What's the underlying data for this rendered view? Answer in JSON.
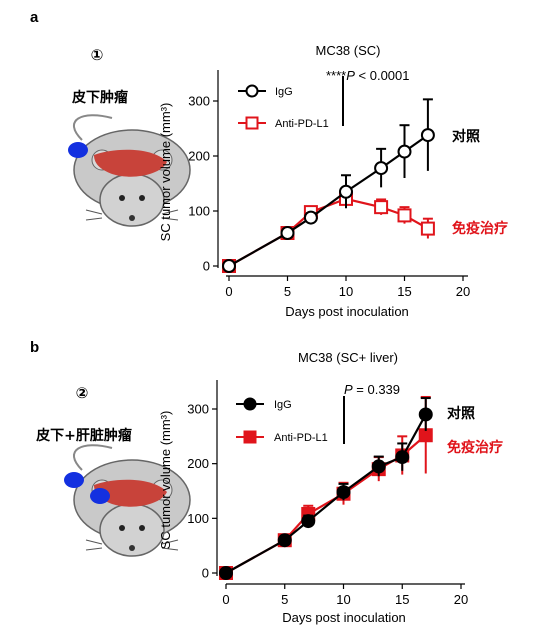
{
  "panels": [
    {
      "panel_label": "a",
      "circle_number": "①",
      "model_label": "皮下肿瘤",
      "show_liver_tumor": false,
      "chart_title": "MC38 (SC)",
      "stat_label": "****P < 0.0001",
      "stat_prefix": "****",
      "stat_p": "P",
      "stat_rest": " < 0.0001",
      "right_label_igg": "对照",
      "right_label_anti": "免疫治疗",
      "marker_fill": "open"
    },
    {
      "panel_label": "b",
      "circle_number": "②",
      "model_label": "皮下+肝脏肿瘤",
      "show_liver_tumor": true,
      "chart_title": "MC38 (SC+ liver)",
      "stat_label": "P = 0.339",
      "stat_prefix": "",
      "stat_p": "P",
      "stat_rest": " = 0.339",
      "right_label_igg": "对照",
      "right_label_anti": "免疫治疗",
      "marker_fill": "filled"
    }
  ],
  "colors": {
    "igg": "#000000",
    "anti": "#e0141b",
    "tumor": "#1330e0",
    "liver": "#c8433a",
    "right_label_anti": "#e0141b"
  },
  "chart_data": [
    {
      "type": "line",
      "title": "MC38 (SC)",
      "xlabel": "Days post inoculation",
      "ylabel": "SC tumor volume (mm³)",
      "xlim": [
        0,
        20
      ],
      "ylim": [
        0,
        340
      ],
      "xticks": [
        0,
        5,
        10,
        15,
        20
      ],
      "yticks": [
        0,
        100,
        200,
        300
      ],
      "legend_position": "top-left",
      "series": [
        {
          "name": "IgG",
          "x": [
            0,
            5,
            7,
            10,
            13,
            15,
            17
          ],
          "y": [
            0,
            60,
            88,
            135,
            178,
            208,
            238
          ],
          "err": [
            0,
            5,
            8,
            30,
            35,
            48,
            65
          ]
        },
        {
          "name": "Anti-PD-L1",
          "x": [
            0,
            5,
            7,
            10,
            13,
            15,
            17
          ],
          "y": [
            0,
            60,
            98,
            122,
            107,
            92,
            68
          ],
          "err": [
            0,
            5,
            10,
            12,
            14,
            15,
            18
          ]
        }
      ]
    },
    {
      "type": "line",
      "title": "MC38 (SC+ liver)",
      "xlabel": "Days post inoculation",
      "ylabel": "SC tumor volume (mm³)",
      "xlim": [
        0,
        20
      ],
      "ylim": [
        0,
        340
      ],
      "xticks": [
        0,
        5,
        10,
        15,
        20
      ],
      "yticks": [
        0,
        100,
        200,
        300
      ],
      "legend_position": "top-left",
      "series": [
        {
          "name": "IgG",
          "x": [
            0,
            5,
            7,
            10,
            13,
            15,
            17
          ],
          "y": [
            0,
            60,
            95,
            148,
            195,
            212,
            290
          ],
          "err": [
            0,
            5,
            10,
            15,
            18,
            25,
            30
          ]
        },
        {
          "name": "Anti-PD-L1",
          "x": [
            0,
            5,
            7,
            10,
            13,
            15,
            17
          ],
          "y": [
            0,
            60,
            108,
            145,
            190,
            215,
            252
          ],
          "err": [
            0,
            6,
            15,
            20,
            22,
            35,
            70
          ]
        }
      ]
    }
  ]
}
